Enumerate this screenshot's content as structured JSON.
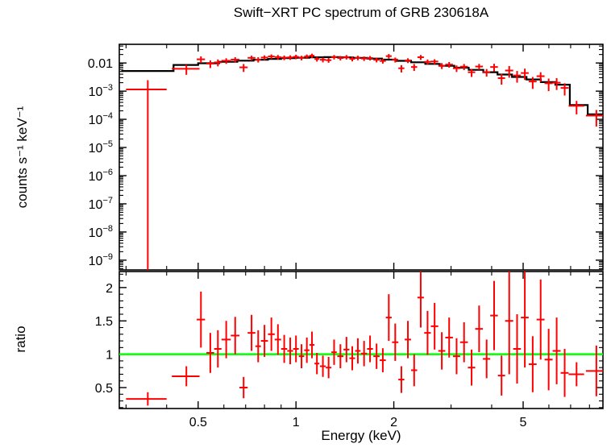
{
  "chart_data": {
    "type": "scatter",
    "title": "Swift−XRT PC spectrum of GRB 230618A",
    "xlabel": "Energy (keV)",
    "x_scale": "log",
    "x_range": [
      0.286,
      8.8
    ],
    "x_ticks": [
      0.5,
      1,
      2,
      5
    ],
    "x_minor_ticks": [
      0.3,
      0.4,
      0.6,
      0.7,
      0.8,
      0.9,
      3,
      4,
      6,
      7,
      8
    ],
    "background_color": "#ffffff",
    "axis_color": "#000000",
    "panels": [
      {
        "name": "spectrum",
        "ylabel": "counts s⁻¹ keV⁻¹",
        "y_scale": "log",
        "y_range": [
          4.5e-10,
          0.046
        ],
        "y_tick_values": [
          0.01,
          0.001,
          0.0001,
          1e-05,
          1e-06,
          1e-07,
          1e-08,
          1e-09
        ],
        "y_tick_labels": [
          "0.01",
          "10^-3",
          "10^-4",
          "10^-5",
          "10^-6",
          "10^-7",
          "10^-8",
          "10^-9"
        ],
        "data_color": "#ff0000",
        "model_color": "#000000",
        "model_step": {
          "edges": [
            0.29,
            0.42,
            0.5,
            0.58,
            0.66,
            0.74,
            0.82,
            0.9,
            1.0,
            1.1,
            1.22,
            1.35,
            1.5,
            1.66,
            1.84,
            2.04,
            2.26,
            2.5,
            2.77,
            3.07,
            3.4,
            3.77,
            4.17,
            4.62,
            5.12,
            5.67,
            6.28,
            6.96,
            7.9,
            8.8
          ],
          "values": [
            0.0052,
            0.0085,
            0.0098,
            0.011,
            0.0121,
            0.0131,
            0.014,
            0.0148,
            0.0154,
            0.0159,
            0.0161,
            0.0158,
            0.0152,
            0.0143,
            0.0132,
            0.0119,
            0.0106,
            0.0093,
            0.008,
            0.0068,
            0.0057,
            0.0047,
            0.0039,
            0.0032,
            0.0026,
            0.0021,
            0.0017,
            0.00032,
            0.00015
          ]
        },
        "points": [
          [
            0.35,
            0.05,
            0.00115,
            0.0013
          ],
          [
            0.46,
            0.045,
            0.0062,
            0.0024
          ],
          [
            0.51,
            0.015,
            0.0135,
            0.0036
          ],
          [
            0.545,
            0.015,
            0.0095,
            0.0029
          ],
          [
            0.575,
            0.015,
            0.0105,
            0.0029
          ],
          [
            0.61,
            0.02,
            0.012,
            0.0027
          ],
          [
            0.65,
            0.02,
            0.0132,
            0.0028
          ],
          [
            0.69,
            0.02,
            0.007,
            0.0022
          ],
          [
            0.73,
            0.02,
            0.0152,
            0.003
          ],
          [
            0.765,
            0.015,
            0.0132,
            0.0028
          ],
          [
            0.8,
            0.02,
            0.0156,
            0.003
          ],
          [
            0.84,
            0.02,
            0.017,
            0.0031
          ],
          [
            0.88,
            0.02,
            0.0162,
            0.003
          ],
          [
            0.92,
            0.02,
            0.0155,
            0.0029
          ],
          [
            0.96,
            0.02,
            0.0158,
            0.0029
          ],
          [
            1.0,
            0.02,
            0.0166,
            0.003
          ],
          [
            1.04,
            0.02,
            0.0152,
            0.0028
          ],
          [
            1.08,
            0.02,
            0.017,
            0.003
          ],
          [
            1.12,
            0.02,
            0.0182,
            0.0032
          ],
          [
            1.16,
            0.02,
            0.0138,
            0.0026
          ],
          [
            1.21,
            0.025,
            0.013,
            0.0025
          ],
          [
            1.26,
            0.025,
            0.0126,
            0.0024
          ],
          [
            1.31,
            0.025,
            0.0162,
            0.0029
          ],
          [
            1.37,
            0.03,
            0.015,
            0.0027
          ],
          [
            1.43,
            0.03,
            0.0162,
            0.0029
          ],
          [
            1.49,
            0.03,
            0.014,
            0.0026
          ],
          [
            1.55,
            0.03,
            0.0153,
            0.0028
          ],
          [
            1.62,
            0.035,
            0.0144,
            0.0026
          ],
          [
            1.69,
            0.035,
            0.015,
            0.0027
          ],
          [
            1.77,
            0.04,
            0.013,
            0.0025
          ],
          [
            1.85,
            0.04,
            0.0118,
            0.0023
          ],
          [
            1.93,
            0.04,
            0.0175,
            0.0033
          ],
          [
            2.02,
            0.045,
            0.013,
            0.0026
          ],
          [
            2.11,
            0.045,
            0.0065,
            0.0019
          ],
          [
            2.21,
            0.05,
            0.0123,
            0.0024
          ],
          [
            2.31,
            0.05,
            0.0072,
            0.002
          ],
          [
            2.42,
            0.055,
            0.016,
            0.0032
          ],
          [
            2.54,
            0.06,
            0.011,
            0.0023
          ],
          [
            2.67,
            0.07,
            0.0113,
            0.0023
          ],
          [
            2.81,
            0.07,
            0.008,
            0.0019
          ],
          [
            2.96,
            0.08,
            0.0088,
            0.002
          ],
          [
            3.12,
            0.08,
            0.0065,
            0.0017
          ],
          [
            3.29,
            0.09,
            0.0074,
            0.0018
          ],
          [
            3.47,
            0.09,
            0.0047,
            0.0015
          ],
          [
            3.66,
            0.1,
            0.0075,
            0.0018
          ],
          [
            3.86,
            0.1,
            0.0047,
            0.0014
          ],
          [
            4.07,
            0.11,
            0.0072,
            0.0022
          ],
          [
            4.29,
            0.11,
            0.0029,
            0.0012
          ],
          [
            4.53,
            0.13,
            0.0054,
            0.0024
          ],
          [
            4.79,
            0.13,
            0.0036,
            0.0016
          ],
          [
            5.06,
            0.14,
            0.0044,
            0.0019
          ],
          [
            5.35,
            0.15,
            0.0022,
            0.001
          ],
          [
            5.66,
            0.16,
            0.0034,
            0.0013
          ],
          [
            5.99,
            0.17,
            0.0019,
            0.0009
          ],
          [
            6.34,
            0.18,
            0.002,
            0.0009
          ],
          [
            6.71,
            0.19,
            0.0013,
            0.0006
          ],
          [
            7.3,
            0.4,
            0.0003,
            0.00015
          ],
          [
            8.4,
            0.6,
            0.000135,
            8e-05
          ]
        ]
      },
      {
        "name": "ratio",
        "ylabel": "ratio",
        "y_scale": "linear",
        "y_range": [
          0.186,
          2.24
        ],
        "y_ticks": [
          0.5,
          1,
          1.5,
          2
        ],
        "reference_line_y": 1,
        "reference_line_color": "#00ff00",
        "data_color": "#ff0000",
        "points": [
          [
            0.35,
            0.05,
            0.33,
            0.1
          ],
          [
            0.46,
            0.045,
            0.67,
            0.15
          ],
          [
            0.51,
            0.015,
            1.52,
            0.42
          ],
          [
            0.545,
            0.015,
            1.02,
            0.3
          ],
          [
            0.575,
            0.015,
            1.08,
            0.28
          ],
          [
            0.61,
            0.02,
            1.22,
            0.28
          ],
          [
            0.65,
            0.02,
            1.28,
            0.28
          ],
          [
            0.69,
            0.02,
            0.5,
            0.16
          ],
          [
            0.73,
            0.02,
            1.32,
            0.27
          ],
          [
            0.765,
            0.015,
            1.12,
            0.24
          ],
          [
            0.8,
            0.02,
            1.2,
            0.24
          ],
          [
            0.84,
            0.02,
            1.3,
            0.25
          ],
          [
            0.88,
            0.02,
            1.22,
            0.23
          ],
          [
            0.92,
            0.02,
            1.08,
            0.21
          ],
          [
            0.96,
            0.02,
            1.05,
            0.2
          ],
          [
            1.0,
            0.02,
            1.08,
            0.2
          ],
          [
            1.04,
            0.02,
            0.97,
            0.18
          ],
          [
            1.08,
            0.02,
            1.06,
            0.19
          ],
          [
            1.12,
            0.02,
            1.14,
            0.2
          ],
          [
            1.16,
            0.02,
            0.86,
            0.16
          ],
          [
            1.21,
            0.025,
            0.82,
            0.16
          ],
          [
            1.26,
            0.025,
            0.8,
            0.16
          ],
          [
            1.31,
            0.025,
            1.03,
            0.19
          ],
          [
            1.37,
            0.03,
            0.97,
            0.18
          ],
          [
            1.43,
            0.03,
            1.07,
            0.19
          ],
          [
            1.49,
            0.03,
            0.94,
            0.18
          ],
          [
            1.55,
            0.03,
            1.05,
            0.19
          ],
          [
            1.62,
            0.035,
            1.01,
            0.19
          ],
          [
            1.69,
            0.035,
            1.08,
            0.2
          ],
          [
            1.77,
            0.04,
            0.97,
            0.19
          ],
          [
            1.85,
            0.04,
            0.91,
            0.18
          ],
          [
            1.93,
            0.04,
            1.55,
            0.35
          ],
          [
            2.02,
            0.045,
            1.18,
            0.28
          ],
          [
            2.11,
            0.045,
            0.62,
            0.2
          ],
          [
            2.21,
            0.05,
            1.22,
            0.28
          ],
          [
            2.31,
            0.05,
            0.76,
            0.24
          ],
          [
            2.42,
            0.055,
            1.85,
            0.45
          ],
          [
            2.54,
            0.06,
            1.32,
            0.33
          ],
          [
            2.67,
            0.07,
            1.42,
            0.35
          ],
          [
            2.81,
            0.07,
            1.05,
            0.28
          ],
          [
            2.96,
            0.08,
            1.25,
            0.3
          ],
          [
            3.12,
            0.08,
            0.97,
            0.27
          ],
          [
            3.29,
            0.09,
            1.18,
            0.3
          ],
          [
            3.47,
            0.09,
            0.8,
            0.27
          ],
          [
            3.66,
            0.1,
            1.38,
            0.35
          ],
          [
            3.86,
            0.1,
            0.93,
            0.29
          ],
          [
            4.07,
            0.11,
            1.58,
            0.52
          ],
          [
            4.29,
            0.11,
            0.68,
            0.3
          ],
          [
            4.53,
            0.13,
            1.5,
            0.8
          ],
          [
            4.79,
            0.13,
            1.08,
            0.52
          ],
          [
            5.06,
            0.14,
            1.55,
            0.75
          ],
          [
            5.35,
            0.15,
            0.85,
            0.42
          ],
          [
            5.66,
            0.16,
            1.52,
            0.6
          ],
          [
            5.99,
            0.17,
            0.92,
            0.46
          ],
          [
            6.34,
            0.18,
            1.05,
            0.5
          ],
          [
            6.71,
            0.19,
            0.72,
            0.36
          ],
          [
            7.3,
            0.4,
            0.7,
            0.18
          ],
          [
            8.4,
            0.6,
            0.75,
            0.38
          ]
        ]
      }
    ]
  }
}
